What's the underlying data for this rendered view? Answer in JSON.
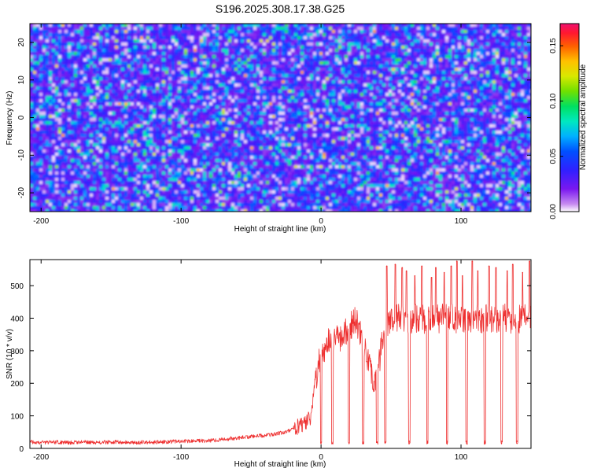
{
  "figure": {
    "title": "S196.2025.308.17.38.G25"
  },
  "chart_data": [
    {
      "type": "heatmap",
      "title": "S196.2025.308.17.38.G25",
      "xlabel": "Height of straight line (km)",
      "ylabel": "Frequency (Hz)",
      "xlim": [
        -208,
        150
      ],
      "ylim": [
        -25,
        25
      ],
      "x_ticks": [
        {
          "value": -200,
          "label": "-200"
        },
        {
          "value": -100,
          "label": "-100"
        },
        {
          "value": 0,
          "label": "0"
        },
        {
          "value": 100,
          "label": "100"
        }
      ],
      "y_ticks": [
        {
          "value": -20,
          "label": "-20"
        },
        {
          "value": -10,
          "label": "-10"
        },
        {
          "value": 0,
          "label": "0"
        },
        {
          "value": 10,
          "label": "10"
        },
        {
          "value": 20,
          "label": "20"
        }
      ],
      "colorbar": {
        "label": "Normalized spectral amplitude",
        "range": [
          0,
          0.17
        ],
        "ticks": [
          {
            "value": 0.0,
            "label": "0.00"
          },
          {
            "value": 0.05,
            "label": "0.05"
          },
          {
            "value": 0.1,
            "label": "0.10"
          },
          {
            "value": 0.15,
            "label": "0.15"
          }
        ]
      },
      "description_note": "noise-like amplitude field, mostly 0.01-0.06 with sparse peaks"
    },
    {
      "type": "line",
      "xlabel": "Height of straight line (km)",
      "ylabel": "SNR (10 * v/v)",
      "xlim": [
        -208,
        150
      ],
      "ylim": [
        0,
        580
      ],
      "x_ticks": [
        {
          "value": -200,
          "label": "-200"
        },
        {
          "value": -100,
          "label": "-100"
        },
        {
          "value": 0,
          "label": "0"
        },
        {
          "value": 100,
          "label": "100"
        }
      ],
      "y_ticks": [
        {
          "value": 0,
          "label": "0"
        },
        {
          "value": 100,
          "label": "100"
        },
        {
          "value": 200,
          "label": "200"
        },
        {
          "value": 300,
          "label": "300"
        },
        {
          "value": 400,
          "label": "400"
        },
        {
          "value": 500,
          "label": "500"
        }
      ],
      "line_color": "#ee3030",
      "series": [
        {
          "name": "SNR",
          "x": [
            -208,
            -200,
            -190,
            -180,
            -170,
            -160,
            -150,
            -140,
            -130,
            -120,
            -110,
            -100,
            -90,
            -80,
            -75,
            -70,
            -65,
            -60,
            -55,
            -50,
            -45,
            -40,
            -35,
            -30,
            -25,
            -20,
            -15,
            -10,
            -7,
            -5,
            -3,
            -1,
            0,
            2,
            4,
            6,
            8,
            10,
            12,
            14,
            16,
            18,
            20,
            22,
            24,
            26,
            28,
            30,
            32,
            34,
            36,
            38,
            40,
            42,
            44,
            46,
            48,
            50,
            55,
            60,
            65,
            70,
            75,
            80,
            85,
            90,
            95,
            100,
            105,
            110,
            115,
            120,
            125,
            130,
            135,
            140,
            145,
            150
          ],
          "y": [
            20,
            18,
            19,
            18,
            20,
            18,
            19,
            20,
            18,
            19,
            20,
            22,
            23,
            24,
            25,
            28,
            30,
            32,
            34,
            36,
            38,
            40,
            42,
            46,
            52,
            60,
            70,
            85,
            100,
            180,
            230,
            270,
            290,
            300,
            320,
            330,
            340,
            350,
            345,
            340,
            350,
            360,
            370,
            380,
            390,
            380,
            360,
            330,
            300,
            260,
            220,
            200,
            230,
            280,
            330,
            380,
            390,
            395,
            400,
            395,
            398,
            402,
            395,
            400,
            398,
            403,
            397,
            400,
            398,
            402,
            396,
            400,
            398,
            402,
            395,
            400,
            398,
            395
          ]
        }
      ],
      "dropouts": [
        {
          "x": 0,
          "y": 15
        },
        {
          "x": 8,
          "y": 15
        },
        {
          "x": 20,
          "y": 15
        },
        {
          "x": 30,
          "y": 15
        },
        {
          "x": 40,
          "y": 18
        },
        {
          "x": 46,
          "y": 18
        },
        {
          "x": 63,
          "y": 22
        },
        {
          "x": 76,
          "y": 22
        },
        {
          "x": 90,
          "y": 22
        },
        {
          "x": 104,
          "y": 22
        },
        {
          "x": 117,
          "y": 22
        },
        {
          "x": 129,
          "y": 22
        },
        {
          "x": 140,
          "y": 22
        }
      ],
      "spikes": [
        {
          "x": 47,
          "y": 560
        },
        {
          "x": 53,
          "y": 565
        },
        {
          "x": 58,
          "y": 555
        },
        {
          "x": 61,
          "y": 545
        },
        {
          "x": 67,
          "y": 530
        },
        {
          "x": 72,
          "y": 560
        },
        {
          "x": 79,
          "y": 525
        },
        {
          "x": 82,
          "y": 555
        },
        {
          "x": 88,
          "y": 540
        },
        {
          "x": 93,
          "y": 560
        },
        {
          "x": 97,
          "y": 575
        },
        {
          "x": 101,
          "y": 530
        },
        {
          "x": 108,
          "y": 575
        },
        {
          "x": 112,
          "y": 545
        },
        {
          "x": 120,
          "y": 560
        },
        {
          "x": 125,
          "y": 555
        },
        {
          "x": 133,
          "y": 545
        },
        {
          "x": 137,
          "y": 565
        },
        {
          "x": 144,
          "y": 540
        },
        {
          "x": 149,
          "y": 575
        }
      ]
    }
  ]
}
